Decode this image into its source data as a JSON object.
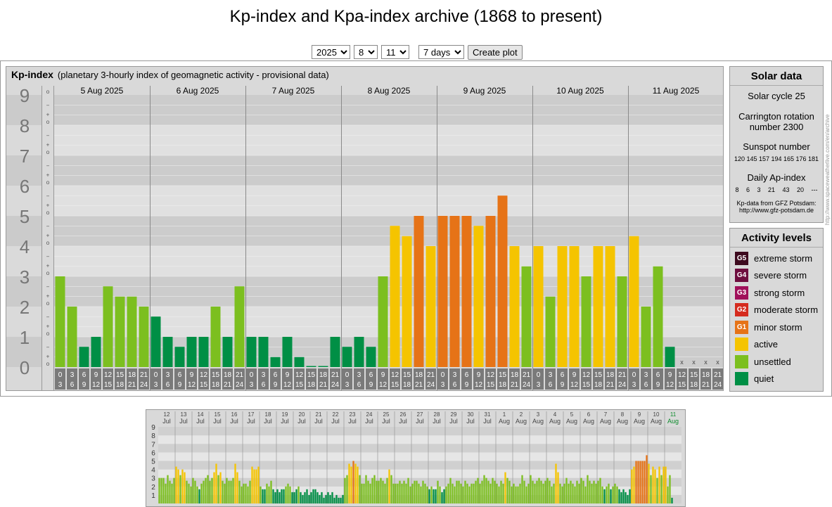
{
  "title": "Kp-index and Kpa-index archive (1868 to present)",
  "controls": {
    "year": "2025",
    "month": "8",
    "day": "11",
    "range": "7 days",
    "create_button": "Create plot"
  },
  "kp_header": {
    "name": "Kp-index",
    "description": "(planetary 3-hourly index of geomagnetic activity - provisional data)"
  },
  "solar": {
    "title": "Solar data",
    "cycle": "Solar cycle 25",
    "carrington_1": "Carrington rotation",
    "carrington_2": "number 2300",
    "sunspot_title": "Sunspot number",
    "sunspots": "120 145 157 194 165 176 181",
    "ap_title": "Daily Ap-index",
    "ap": "8 6 3 21 43 20 ---",
    "source_1": "Kp-data from GFZ Potsdam:",
    "source_2": "http://www.gfz-potsdam.de"
  },
  "activity": {
    "title": "Activity levels",
    "items": [
      {
        "code": "G5",
        "label": "extreme storm",
        "color": "#3d0a1e"
      },
      {
        "code": "G4",
        "label": "severe storm",
        "color": "#6e0d3e"
      },
      {
        "code": "G3",
        "label": "strong storm",
        "color": "#a0105a"
      },
      {
        "code": "G2",
        "label": "moderate storm",
        "color": "#d52b1e"
      },
      {
        "code": "G1",
        "label": "minor storm",
        "color": "#e67317"
      },
      {
        "code": "",
        "label": "active",
        "color": "#f5c400"
      },
      {
        "code": "",
        "label": "unsettled",
        "color": "#7cbf1f"
      },
      {
        "code": "",
        "label": "quiet",
        "color": "#008f45"
      }
    ]
  },
  "vertical_label": "http://www.spaceweatherlive.com/en/archive",
  "chart_data": [
    {
      "type": "bar",
      "title": "Kp-index",
      "days": [
        "5 Aug 2025",
        "6 Aug 2025",
        "7 Aug 2025",
        "8 Aug 2025",
        "9 Aug 2025",
        "10 Aug 2025",
        "11 Aug 2025"
      ],
      "hour_start": [
        "0",
        "3",
        "6",
        "9",
        "12",
        "15",
        "18",
        "21"
      ],
      "hour_end": [
        "3",
        "6",
        "9",
        "12",
        "15",
        "18",
        "21",
        "24"
      ],
      "yticks": [
        "0",
        "1",
        "2",
        "3",
        "4",
        "5",
        "6",
        "7",
        "8",
        "9"
      ],
      "ylim": [
        0,
        9
      ],
      "missing_marker": "x",
      "thresholds": {
        "quiet": 1.99,
        "unsettled": 3.34,
        "active": 4.67,
        "minor": 5.67
      },
      "values": [
        3,
        2,
        0.67,
        1,
        2.67,
        2.33,
        2.33,
        2,
        1.67,
        1,
        0.67,
        1,
        1,
        2,
        1,
        2.67,
        1,
        1,
        0.33,
        1,
        0.33,
        0,
        0,
        1,
        0.67,
        1,
        0.67,
        3,
        4.67,
        4.33,
        5,
        4,
        5,
        5,
        5,
        4.67,
        5,
        5.67,
        4,
        3.33,
        4,
        2.33,
        4,
        4,
        3,
        4,
        4,
        3,
        4.33,
        2,
        3.33,
        0.67,
        null,
        null,
        null,
        null
      ]
    },
    {
      "type": "bar",
      "title": "Kp-index 30-day overview",
      "days": [
        "12",
        "13",
        "14",
        "15",
        "16",
        "17",
        "18",
        "19",
        "20",
        "21",
        "22",
        "23",
        "24",
        "25",
        "26",
        "27",
        "28",
        "29",
        "30",
        "31",
        "1",
        "2",
        "3",
        "4",
        "5",
        "6",
        "7",
        "8",
        "9",
        "10",
        "11"
      ],
      "months": [
        "Jul",
        "Jul",
        "Jul",
        "Jul",
        "Jul",
        "Jul",
        "Jul",
        "Jul",
        "Jul",
        "Jul",
        "Jul",
        "Jul",
        "Jul",
        "Jul",
        "Jul",
        "Jul",
        "Jul",
        "Jul",
        "Jul",
        "Jul",
        "Aug",
        "Aug",
        "Aug",
        "Aug",
        "Aug",
        "Aug",
        "Aug",
        "Aug",
        "Aug",
        "Aug",
        "Aug"
      ],
      "highlight_day_index": 30,
      "yticks": [
        "1",
        "2",
        "3",
        "4",
        "5",
        "6",
        "7",
        "8",
        "9"
      ],
      "ylim": [
        0,
        9.5
      ],
      "values": [
        3,
        3,
        3,
        2.33,
        3.33,
        2.67,
        2.33,
        3,
        4.33,
        4,
        3.33,
        4,
        3.67,
        2.67,
        2.33,
        2,
        3,
        2.67,
        2,
        1.67,
        2.33,
        2.67,
        3,
        3.33,
        2.67,
        3,
        3.67,
        4.67,
        3.33,
        3.67,
        2.67,
        2.33,
        3,
        2.67,
        2.67,
        3,
        4.67,
        3.67,
        2.67,
        2,
        2.33,
        2.33,
        2,
        2.67,
        4.33,
        4,
        4,
        4.33,
        2,
        1.67,
        1.67,
        2.33,
        2,
        2.67,
        1.67,
        1.33,
        1.67,
        1.33,
        1.67,
        1.67,
        2,
        2.33,
        2,
        1.33,
        1.33,
        1.67,
        2,
        1.33,
        1,
        1.33,
        1.67,
        1,
        1.33,
        1.67,
        1.67,
        1.33,
        1,
        1.33,
        0.67,
        1,
        1.33,
        1,
        1.33,
        0.67,
        1,
        0.67,
        0.67,
        1,
        3,
        3.33,
        4.67,
        4.33,
        5,
        4.67,
        4.33,
        3.33,
        2.33,
        2.33,
        3.33,
        2.67,
        2.33,
        3,
        3.33,
        2.67,
        2.67,
        3,
        2.67,
        2.33,
        3,
        4,
        3.33,
        2.33,
        2.33,
        2.33,
        2.67,
        2.33,
        2.67,
        2.33,
        3,
        2,
        2.33,
        2.67,
        2.67,
        2.33,
        2,
        2.67,
        2.33,
        2,
        1.67,
        2,
        1.67,
        1.67,
        2.67,
        2,
        1.33,
        1.67,
        2,
        2.33,
        3,
        2.33,
        2,
        2.67,
        2.67,
        2.33,
        2,
        2.67,
        2.33,
        2,
        2.33,
        2.33,
        2.67,
        3,
        2.33,
        2.67,
        3.33,
        3,
        2.67,
        2.33,
        3,
        2.67,
        2.33,
        2,
        2.67,
        2.33,
        3.67,
        3,
        2.67,
        2,
        2.33,
        2,
        2,
        2.33,
        3.33,
        2.67,
        2,
        2.33,
        3.33,
        2.67,
        2.33,
        2.67,
        3,
        2.67,
        2.33,
        2.67,
        3,
        2.67,
        2,
        2.33,
        4.67,
        3.67,
        2.33,
        2,
        2.33,
        3,
        2.33,
        2.67,
        2.33,
        2,
        2.67,
        2.33,
        3,
        2.67,
        2,
        3.33,
        2.67,
        2.33,
        2.67,
        2.33,
        2.67,
        3,
        2,
        1.67,
        2,
        2.33,
        1.67,
        2,
        2.33,
        2,
        1.67,
        1.33,
        1.67,
        1.33,
        1,
        1.67,
        4,
        4.33,
        5,
        5,
        5,
        5,
        5,
        5.67,
        4.67,
        3.33,
        4.33,
        4,
        3,
        4.33,
        3.33,
        4.33,
        4.33,
        2,
        3.33,
        0.67
      ]
    }
  ]
}
